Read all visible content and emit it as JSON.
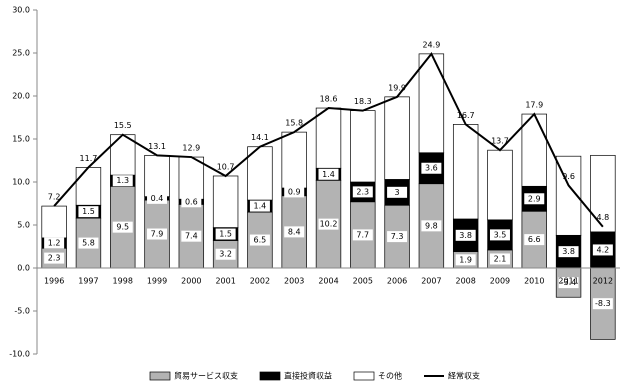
{
  "chart_data": {
    "type": "bar",
    "stacked": true,
    "categories": [
      "1996",
      "1997",
      "1998",
      "1999",
      "2000",
      "2001",
      "2002",
      "2003",
      "2004",
      "2005",
      "2006",
      "2007",
      "2008",
      "2009",
      "2010",
      "2011",
      "2012"
    ],
    "series": [
      {
        "name": "貿易サービス収支",
        "type": "bar",
        "color": "#b3b3b3",
        "data_labels": true,
        "values": [
          2.3,
          5.8,
          9.5,
          7.9,
          7.4,
          3.2,
          6.5,
          8.4,
          10.2,
          7.7,
          7.3,
          9.8,
          1.9,
          2.1,
          6.6,
          -3.4,
          -8.3
        ]
      },
      {
        "name": "直接投資収益",
        "type": "bar",
        "color": "#000000",
        "data_labels": true,
        "values": [
          1.2,
          1.5,
          1.3,
          0.4,
          0.6,
          1.5,
          1.4,
          0.9,
          1.4,
          2.3,
          3.0,
          3.6,
          3.8,
          3.5,
          2.9,
          3.8,
          4.2
        ]
      },
      {
        "name": "その他",
        "type": "bar",
        "color": "#ffffff",
        "data_labels": false,
        "values": [
          3.7,
          4.4,
          4.7,
          4.8,
          4.9,
          6.0,
          6.2,
          6.5,
          7.0,
          8.3,
          9.6,
          11.5,
          11.0,
          8.1,
          8.4,
          9.2,
          8.9
        ]
      },
      {
        "name": "経常収支",
        "type": "line",
        "color": "#000000",
        "data_labels": true,
        "values": [
          7.2,
          11.7,
          15.5,
          13.1,
          12.9,
          10.7,
          14.1,
          15.8,
          18.6,
          18.3,
          19.9,
          24.9,
          16.7,
          13.7,
          17.9,
          9.6,
          4.8
        ]
      }
    ],
    "ylim": [
      -10,
      30
    ],
    "yticks": [
      {
        "value": -10,
        "label": "-10.0"
      },
      {
        "value": -5,
        "label": "-5.0"
      },
      {
        "value": 0,
        "label": "0.0"
      },
      {
        "value": 5,
        "label": "5.0"
      },
      {
        "value": 10,
        "label": "10.0"
      },
      {
        "value": 15,
        "label": "15.0"
      },
      {
        "value": 20,
        "label": "20.0"
      },
      {
        "value": 25,
        "label": "25.0"
      },
      {
        "value": 30,
        "label": "30.0"
      }
    ],
    "legend": "bottom"
  }
}
